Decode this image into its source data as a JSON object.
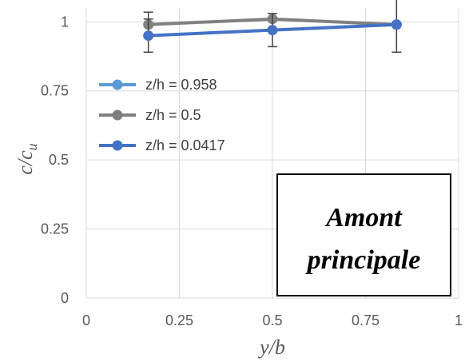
{
  "chart_data": {
    "type": "line",
    "x_ticks": [
      "0",
      "0.25",
      "0.5",
      "0.75",
      "1"
    ],
    "y_ticks": [
      "0",
      "0.25",
      "0.5",
      "0.75",
      "1"
    ],
    "xlim": [
      0,
      1
    ],
    "ylim": [
      0,
      1.05
    ],
    "xlabel": "y/b",
    "ylabel_main": "c/c",
    "ylabel_sub": "u",
    "grid": true,
    "legend_placement": "upper-left",
    "annotation_line1": "Amont",
    "annotation_line2": "principale",
    "series": [
      {
        "name": "z/h = 0.958",
        "color": "#5B9BD5",
        "x": [
          0.8333
        ],
        "y": [
          0.99
        ],
        "err": [
          0
        ]
      },
      {
        "name": "z/h = 0.5",
        "color": "#808080",
        "x": [
          0.1667,
          0.5,
          0.8333
        ],
        "y": [
          0.99,
          1.01,
          0.99
        ],
        "err": [
          0.045,
          0,
          0
        ]
      },
      {
        "name": "z/h = 0.0417",
        "color": "#4472C4",
        "x": [
          0.1667,
          0.5,
          0.8333
        ],
        "y": [
          0.95,
          0.97,
          0.99
        ],
        "err": [
          0.06,
          0.06,
          0.1
        ]
      }
    ]
  }
}
